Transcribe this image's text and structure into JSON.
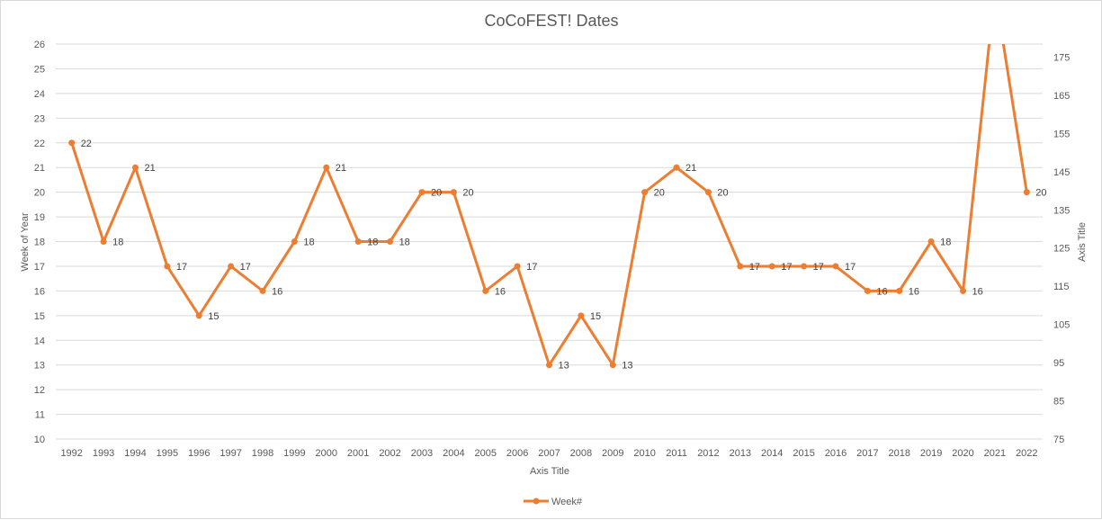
{
  "chart_data": {
    "type": "line",
    "title": "CoCoFEST! Dates",
    "xlabel": "Axis Title",
    "ylabel": "Week of Year",
    "y2label": "Axis Title",
    "categories": [
      "1992",
      "1993",
      "1994",
      "1995",
      "1996",
      "1997",
      "1998",
      "1999",
      "2000",
      "2001",
      "2002",
      "2003",
      "2004",
      "2005",
      "2006",
      "2007",
      "2008",
      "2009",
      "2010",
      "2011",
      "2012",
      "2013",
      "2014",
      "2015",
      "2016",
      "2017",
      "2018",
      "2019",
      "2020",
      "2021",
      "2022"
    ],
    "series": [
      {
        "name": "Week#",
        "color": "#ed7d31",
        "values": [
          22,
          18,
          21,
          17,
          15,
          17,
          16,
          18,
          21,
          18,
          18,
          20,
          20,
          16,
          17,
          13,
          15,
          13,
          20,
          21,
          20,
          17,
          17,
          17,
          17,
          16,
          16,
          18,
          16,
          null,
          20
        ]
      }
    ],
    "ylim": [
      10,
      26
    ],
    "yticks": [
      10,
      11,
      12,
      13,
      14,
      15,
      16,
      17,
      18,
      19,
      20,
      21,
      22,
      23,
      24,
      25,
      26
    ],
    "y2lim": [
      75,
      178.4
    ],
    "y2ticks": [
      75,
      85,
      95,
      105,
      115,
      125,
      135,
      145,
      155,
      165,
      175
    ],
    "grid": true,
    "legend": "bottom"
  }
}
